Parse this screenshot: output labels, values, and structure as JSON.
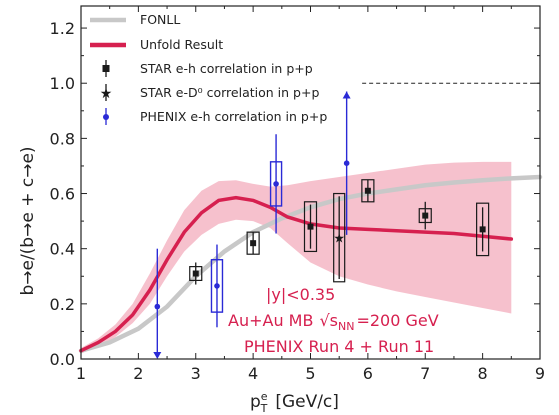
{
  "chart_data": {
    "type": "scatter",
    "xlabel_main": "p",
    "xlabel_sup": "e",
    "xlabel_sub": "T",
    "xlabel_unit": "[GeV/c]",
    "ylabel": "b→e/(b→e + c→e)",
    "xlim": [
      1,
      9
    ],
    "ylim": [
      0,
      1.28
    ],
    "x_ticks": [
      1,
      2,
      3,
      4,
      5,
      6,
      7,
      8,
      9
    ],
    "y_ticks": [
      0.0,
      0.2,
      0.4,
      0.6,
      0.8,
      1.0,
      1.2
    ],
    "x_tick_labels": [
      "1",
      "2",
      "3",
      "4",
      "5",
      "6",
      "7",
      "8",
      "9"
    ],
    "y_tick_labels": [
      "0.0",
      "0.2",
      "0.4",
      "0.6",
      "0.8",
      "1.0",
      "1.2"
    ],
    "reference_line": 1.0,
    "legend": {
      "placement": "top-left",
      "entries": [
        {
          "key": "fonll",
          "label": "FONLL"
        },
        {
          "key": "unfold",
          "label": "Unfold Result"
        },
        {
          "key": "star_eh",
          "label": "STAR e-h correlation in p+p"
        },
        {
          "key": "star_ed0",
          "label": "STAR e-D⁰ correlation in p+p"
        },
        {
          "key": "phenix_eh",
          "label": "PHENIX e-h correlation in p+p"
        }
      ]
    },
    "colors": {
      "fonll": "#c8c8c8",
      "unfold": "#d6204f",
      "band": "#f4b6c4",
      "star": "#1a1a1a",
      "phenix": "#2a2ad6"
    },
    "fonll": {
      "x": [
        1.0,
        1.5,
        2.0,
        2.5,
        3.0,
        3.5,
        4.0,
        4.5,
        5.0,
        5.5,
        6.0,
        6.5,
        7.0,
        7.5,
        8.0,
        8.5,
        9.0
      ],
      "y": [
        0.03,
        0.06,
        0.11,
        0.19,
        0.3,
        0.39,
        0.46,
        0.51,
        0.55,
        0.58,
        0.6,
        0.615,
        0.63,
        0.64,
        0.648,
        0.655,
        0.66
      ]
    },
    "unfold": {
      "x": [
        1.0,
        1.3,
        1.6,
        1.9,
        2.2,
        2.5,
        2.8,
        3.1,
        3.4,
        3.7,
        4.0,
        4.3,
        4.6,
        5.0,
        5.5,
        6.0,
        6.5,
        7.0,
        7.5,
        8.0,
        8.5
      ],
      "y": [
        0.03,
        0.06,
        0.1,
        0.16,
        0.25,
        0.36,
        0.46,
        0.53,
        0.575,
        0.585,
        0.575,
        0.55,
        0.515,
        0.49,
        0.475,
        0.47,
        0.465,
        0.46,
        0.455,
        0.445,
        0.435
      ],
      "band_upper": [
        0.04,
        0.075,
        0.125,
        0.2,
        0.31,
        0.43,
        0.54,
        0.61,
        0.645,
        0.648,
        0.635,
        0.625,
        0.63,
        0.645,
        0.66,
        0.675,
        0.69,
        0.705,
        0.712,
        0.715,
        0.715
      ],
      "band_lower": [
        0.02,
        0.045,
        0.08,
        0.13,
        0.2,
        0.3,
        0.39,
        0.45,
        0.49,
        0.505,
        0.5,
        0.475,
        0.42,
        0.35,
        0.3,
        0.27,
        0.245,
        0.225,
        0.205,
        0.185,
        0.165
      ]
    },
    "star_eh": {
      "x": [
        3.0,
        4.0,
        5.0,
        6.0,
        7.0,
        8.0
      ],
      "y": [
        0.31,
        0.42,
        0.48,
        0.61,
        0.52,
        0.47
      ],
      "stat_err": [
        0.04,
        0.04,
        0.08,
        0.04,
        0.05,
        0.08
      ],
      "sys_err": [
        0.025,
        0.04,
        0.09,
        0.04,
        0.025,
        0.095
      ]
    },
    "star_ed0": {
      "x": [
        5.5
      ],
      "y": [
        0.44
      ],
      "stat_err": [
        0.15
      ],
      "sys_err": [
        0.16
      ]
    },
    "phenix_eh": {
      "x": [
        2.33,
        3.37,
        4.4,
        5.63
      ],
      "y": [
        0.19,
        0.265,
        0.635,
        0.71
      ],
      "stat_err": [
        0.21,
        0.15,
        0.18,
        0.26
      ],
      "sys_err": [
        0.0,
        0.095,
        0.08,
        0.0
      ]
    },
    "annotations": [
      {
        "key": "rapidity",
        "text": "|y|<0.35"
      },
      {
        "key": "system",
        "text": "Au+Au MB",
        "math": "√s",
        "math_sub": "NN",
        "tail": "=200 GeV"
      },
      {
        "key": "run",
        "text": "PHENIX Run 4 + Run 11"
      }
    ]
  }
}
